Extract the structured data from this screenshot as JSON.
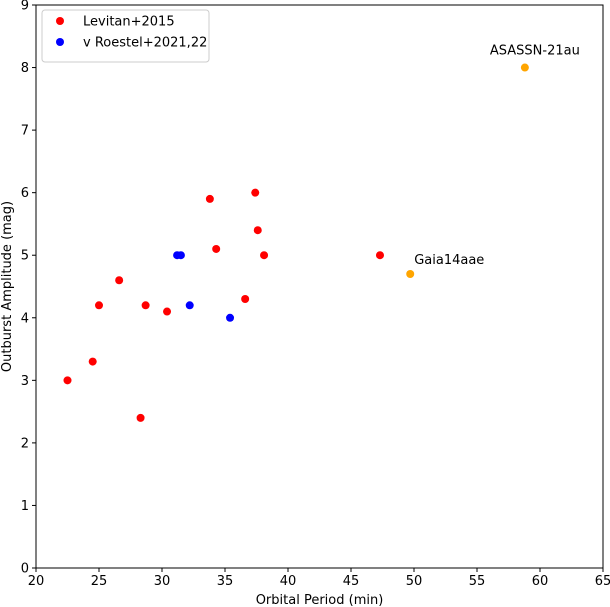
{
  "chart_data": {
    "type": "scatter",
    "xlabel": "Orbital Period (min)",
    "ylabel": "Outburst Amplitude (mag)",
    "xlim": [
      20,
      65
    ],
    "ylim": [
      0,
      9
    ],
    "xticks": [
      20,
      25,
      30,
      35,
      40,
      45,
      50,
      55,
      60,
      65
    ],
    "yticks": [
      0,
      1,
      2,
      3,
      4,
      5,
      6,
      7,
      8,
      9
    ],
    "grid": false,
    "legend_position": "top-left",
    "series": [
      {
        "name": "Levitan+2015",
        "color": "#ff0000",
        "in_legend": true,
        "points": [
          {
            "x": 22.5,
            "y": 3.0
          },
          {
            "x": 24.5,
            "y": 3.3
          },
          {
            "x": 25.0,
            "y": 4.2
          },
          {
            "x": 26.6,
            "y": 4.6
          },
          {
            "x": 28.3,
            "y": 2.4
          },
          {
            "x": 28.7,
            "y": 4.2
          },
          {
            "x": 30.4,
            "y": 4.1
          },
          {
            "x": 33.8,
            "y": 5.9
          },
          {
            "x": 34.3,
            "y": 5.1
          },
          {
            "x": 36.6,
            "y": 4.3
          },
          {
            "x": 37.4,
            "y": 6.0
          },
          {
            "x": 37.6,
            "y": 5.4
          },
          {
            "x": 38.1,
            "y": 5.0
          },
          {
            "x": 47.3,
            "y": 5.0
          }
        ]
      },
      {
        "name": "v Roestel+2021,22",
        "color": "#0000ff",
        "in_legend": true,
        "points": [
          {
            "x": 31.2,
            "y": 5.0
          },
          {
            "x": 31.5,
            "y": 5.0
          },
          {
            "x": 32.2,
            "y": 4.2
          },
          {
            "x": 35.4,
            "y": 4.0
          }
        ]
      },
      {
        "color": "#ffa500",
        "in_legend": false,
        "points": [
          {
            "x": 49.7,
            "y": 4.7
          },
          {
            "x": 58.8,
            "y": 8.0
          }
        ]
      }
    ],
    "annotations": [
      {
        "text": "Gaia14aae",
        "x": 49.7,
        "y": 4.7
      },
      {
        "text": "ASASSN-21au",
        "x": 58.8,
        "y": 8.0
      }
    ]
  }
}
